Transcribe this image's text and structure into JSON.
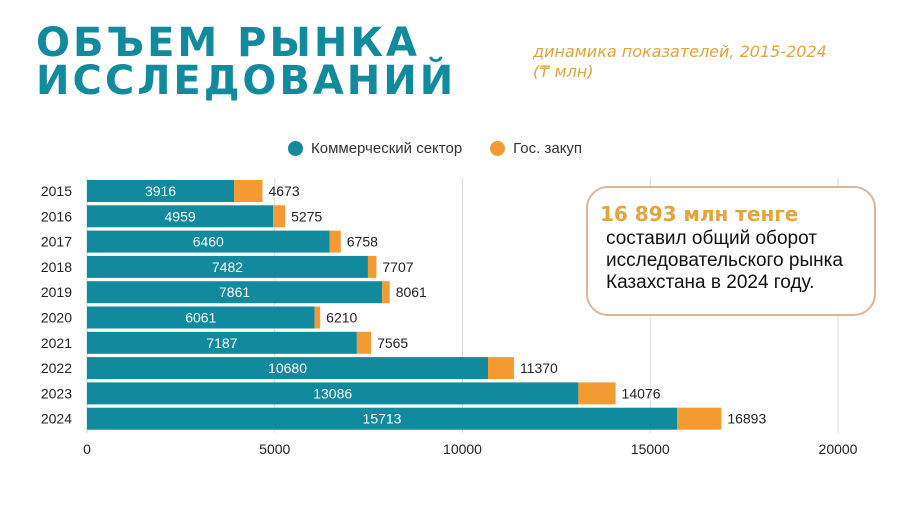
{
  "header": {
    "title_line1": "ОБЪЕМ РЫНКА",
    "title_line2": "ИССЛЕДОВАНИЙ",
    "subtitle_line1": "динамика показателей, 2015-2024",
    "subtitle_line2": "(₸ млн)"
  },
  "callout": {
    "highlight": "16 893 млн тенге",
    "text": "составил общий оборот исследовательского рынка Казахстана в 2024 году."
  },
  "colors": {
    "accent": "#118a9e",
    "secondary": "#f49a32",
    "title": "#118a9e",
    "subtitle": "#e8a23c"
  },
  "chart_data": {
    "type": "bar",
    "orientation": "horizontal",
    "stacked": true,
    "categories": [
      "2015",
      "2016",
      "2017",
      "2018",
      "2019",
      "2020",
      "2021",
      "2022",
      "2023",
      "2024"
    ],
    "series": [
      {
        "name": "Коммерческий сектор",
        "color": "#118a9e",
        "values": [
          3916,
          4959,
          6460,
          7482,
          7861,
          6061,
          7187,
          10680,
          13086,
          15713
        ]
      },
      {
        "name": "Гос. закуп",
        "color": "#f49a32",
        "values": [
          757,
          316,
          298,
          225,
          200,
          149,
          378,
          690,
          990,
          1180
        ]
      }
    ],
    "inner_labels": [
      "3916",
      "4959",
      "6460",
      "7482",
      "7861",
      "6061",
      "7187",
      "10680",
      "13086",
      "15713"
    ],
    "total_labels": [
      "4673",
      "5275",
      "6758",
      "7707",
      "8061",
      "6210",
      "7565",
      "11370",
      "14076",
      "16893"
    ],
    "xlim": [
      0,
      20000
    ],
    "xticks": [
      "0",
      "5000",
      "10000",
      "15000",
      "20000"
    ],
    "grid": true,
    "legend_position": "top"
  }
}
